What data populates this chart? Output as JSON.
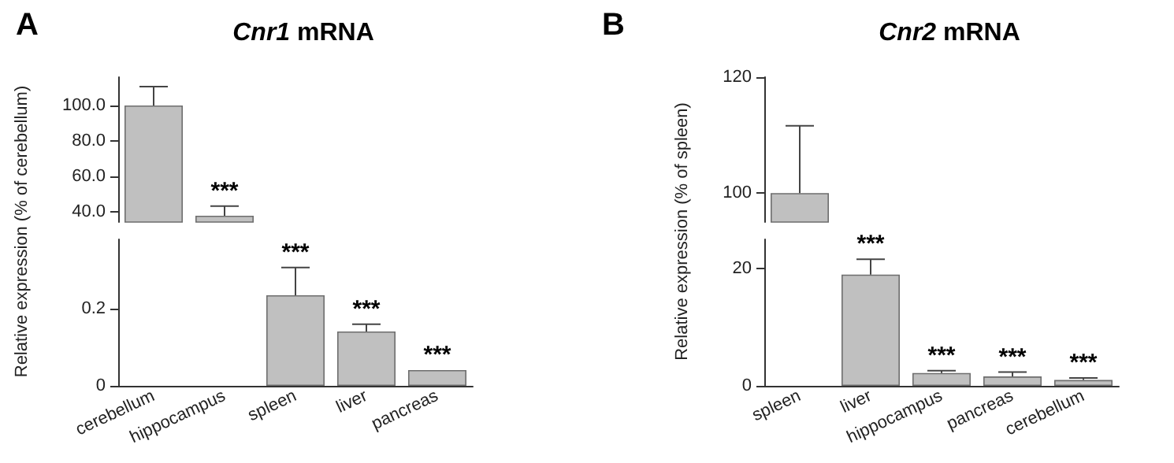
{
  "chart_data": [
    {
      "type": "bar",
      "title": "Cnr1 mRNA",
      "ylabel": "Relative expression (% of cerebellum)",
      "categories": [
        "cerebellum",
        "hippocampus",
        "spleen",
        "liver",
        "pancreas"
      ],
      "values": [
        100,
        37.6,
        null,
        null,
        null
      ],
      "errors": [
        [
          100,
          110.7
        ],
        [
          37.6,
          43
        ],
        null,
        null,
        null
      ],
      "color": "#c0c0c0",
      "ylim": [
        34,
        116
      ],
      "yticks": [
        {
          "value": 40,
          "label": "40.0"
        },
        {
          "value": 60,
          "label": "60.0"
        },
        {
          "value": 80,
          "label": "80.0"
        },
        {
          "value": 100,
          "label": "100.0"
        }
      ],
      "tick_labels": "y",
      "annotations": [
        "A",
        {
          "text": "***",
          "x": "hippocampus",
          "y": 43
        }
      ]
    },
    {
      "type": "bar",
      "categories": [
        "cerebellum",
        "hippocampus",
        "spleen",
        "liver",
        "pancreas"
      ],
      "values": [
        null,
        null,
        0.235,
        0.141,
        0.041
      ],
      "errors": [
        null,
        null,
        [
          0.235,
          0.307
        ],
        [
          0.141,
          0.16
        ],
        null
      ],
      "color": "#c0c0c0",
      "ylim": [
        0,
        0.38
      ],
      "yticks": [
        0,
        0.2
      ],
      "annotations": [
        {
          "text": "***",
          "x": "spleen",
          "y": 0.307
        },
        {
          "text": "***",
          "x": "liver",
          "y": 0.16
        },
        {
          "text": "***",
          "x": "pancreas",
          "y": 0.041
        }
      ]
    },
    {
      "type": "bar",
      "title": "Cnr2 mRNA",
      "ylabel": "Relative expression (% of spleen)",
      "categories": [
        "spleen",
        "liver",
        "hippocampus",
        "pancreas",
        "cerebellum"
      ],
      "values": [
        100,
        null,
        null,
        null,
        null
      ],
      "errors": [
        [
          100,
          111.6
        ],
        null,
        null,
        null,
        null
      ],
      "color": "#c0c0c0",
      "ylim": [
        95,
        120
      ],
      "yticks": [
        100,
        120
      ],
      "tick_labels": "y",
      "annotations": [
        "B"
      ]
    },
    {
      "type": "bar",
      "categories": [
        "spleen",
        "liver",
        "hippocampus",
        "pancreas",
        "cerebellum"
      ],
      "values": [
        null,
        19,
        2.2,
        1.6,
        1.0
      ],
      "errors": [
        null,
        [
          19,
          21.6
        ],
        [
          2.2,
          2.6
        ],
        [
          1.6,
          2.35
        ],
        [
          1.0,
          1.35
        ]
      ],
      "color": "#c0c0c0",
      "ylim": [
        0,
        25
      ],
      "yticks": [
        0,
        20
      ],
      "annotations": [
        {
          "text": "***",
          "x": "liver",
          "y": 21.6
        },
        {
          "text": "***",
          "x": "hippocampus",
          "y": 2.6
        },
        {
          "text": "***",
          "x": "pancreas",
          "y": 2.35
        },
        {
          "text": "***",
          "x": "cerebellum",
          "y": 1.35
        }
      ]
    }
  ]
}
